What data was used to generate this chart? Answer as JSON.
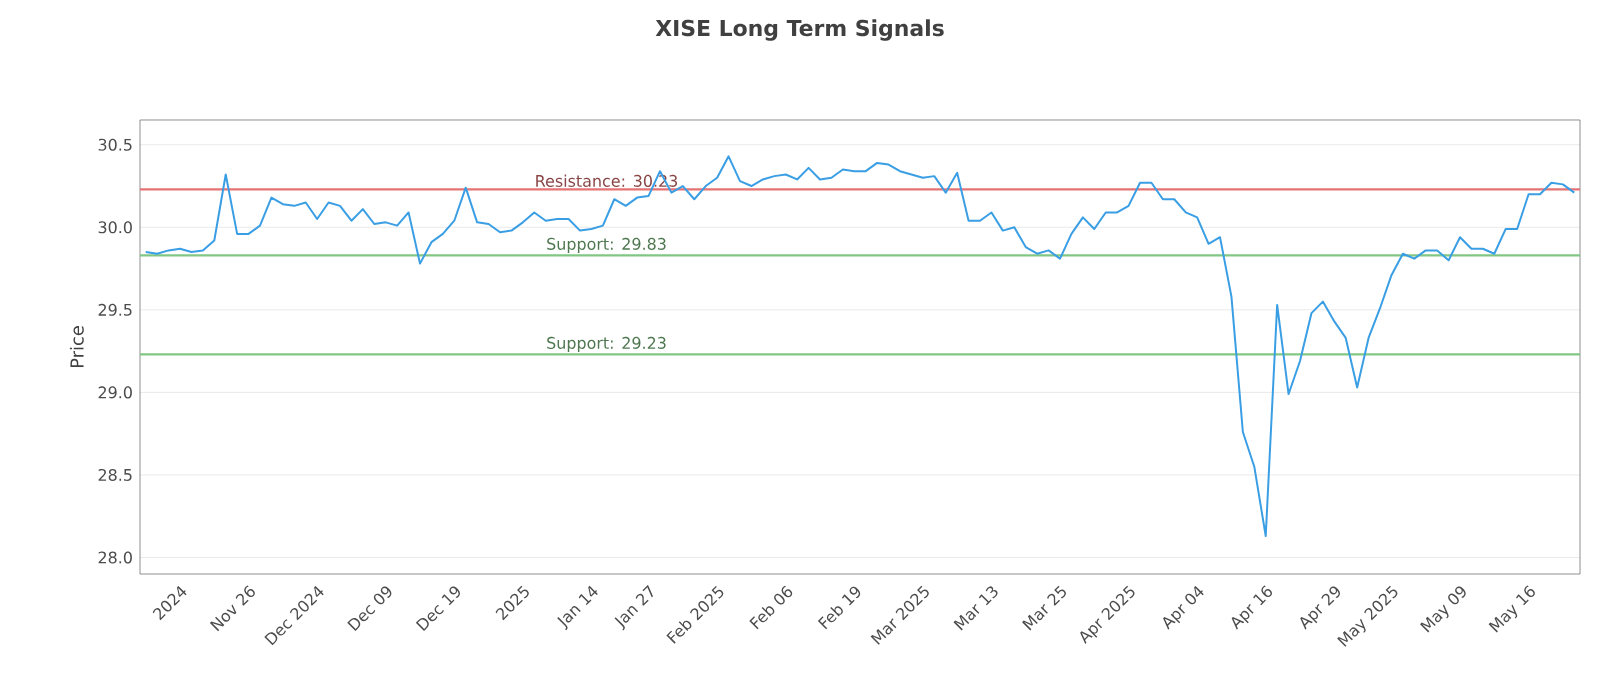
{
  "chart_data": {
    "type": "line",
    "title": "XISE Long Term Signals",
    "ylabel": "Price",
    "categories": [
      null,
      null,
      null,
      "2024",
      null,
      null,
      null,
      null,
      null,
      "Nov 26",
      null,
      null,
      null,
      null,
      null,
      "Dec 2024",
      null,
      null,
      null,
      null,
      null,
      "Dec 09",
      null,
      null,
      null,
      null,
      null,
      "Dec 19",
      null,
      null,
      null,
      null,
      null,
      "2025",
      null,
      null,
      null,
      null,
      null,
      "Jan 14",
      null,
      null,
      null,
      null,
      "Jan 27",
      null,
      null,
      null,
      null,
      null,
      "Feb 2025",
      null,
      null,
      null,
      null,
      null,
      "Feb 06",
      null,
      null,
      null,
      null,
      null,
      "Feb 19",
      null,
      null,
      null,
      null,
      null,
      "Mar 2025",
      null,
      null,
      null,
      null,
      null,
      "Mar 13",
      null,
      null,
      null,
      null,
      null,
      "Mar 25",
      null,
      null,
      null,
      null,
      null,
      "Apr 2025",
      null,
      null,
      null,
      null,
      null,
      "Apr 04",
      null,
      null,
      null,
      null,
      null,
      "Apr 16",
      null,
      null,
      null,
      null,
      null,
      "Apr 29",
      null,
      null,
      null,
      null,
      "May 2025",
      null,
      null,
      null,
      null,
      null,
      "May 09",
      null,
      null,
      null,
      null,
      null,
      "May 16",
      null,
      null,
      null,
      null
    ],
    "series": [
      {
        "color": "#3a9ee4",
        "values": [
          29.85,
          29.84,
          29.86,
          29.87,
          29.85,
          29.86,
          29.92,
          30.32,
          29.96,
          29.96,
          30.01,
          30.18,
          30.14,
          30.13,
          30.15,
          30.05,
          30.15,
          30.13,
          30.04,
          30.11,
          30.02,
          30.03,
          30.01,
          30.09,
          29.78,
          29.91,
          29.96,
          30.04,
          30.24,
          30.03,
          30.02,
          29.97,
          29.98,
          30.03,
          30.09,
          30.04,
          30.05,
          30.05,
          29.98,
          29.99,
          30.01,
          30.17,
          30.13,
          30.18,
          30.19,
          30.34,
          30.21,
          30.25,
          30.17,
          30.25,
          30.3,
          30.43,
          30.28,
          30.25,
          30.29,
          30.31,
          30.32,
          30.29,
          30.36,
          30.29,
          30.3,
          30.35,
          30.34,
          30.34,
          30.39,
          30.38,
          30.34,
          30.32,
          30.3,
          30.31,
          30.21,
          30.33,
          30.04,
          30.04,
          30.09,
          29.98,
          30.0,
          29.88,
          29.84,
          29.86,
          29.81,
          29.96,
          30.06,
          29.99,
          30.09,
          30.09,
          30.13,
          30.27,
          30.27,
          30.17,
          30.17,
          30.09,
          30.06,
          29.9,
          29.94,
          29.58,
          28.76,
          28.55,
          28.13,
          29.53,
          28.99,
          29.19,
          29.48,
          29.55,
          29.43,
          29.33,
          29.03,
          29.33,
          29.51,
          29.71,
          29.84,
          29.81,
          29.86,
          29.86,
          29.8,
          29.94,
          29.87,
          29.87,
          29.84,
          29.99,
          29.99,
          30.2,
          30.2,
          30.27,
          30.26,
          30.21
        ]
      }
    ],
    "ylim": [
      27.9,
      30.65
    ],
    "yticks": [
      {
        "value": 28.0,
        "label": "28.0"
      },
      {
        "value": 28.5,
        "label": "28.5"
      },
      {
        "value": 29.0,
        "label": "29.0"
      },
      {
        "value": 29.5,
        "label": "29.5"
      },
      {
        "value": 30.0,
        "label": "30.0"
      },
      {
        "value": 30.5,
        "label": "30.5"
      }
    ],
    "grid": "y",
    "ref_lines": [
      {
        "axis": "y",
        "value": 30.23,
        "label": "Resistance: 30.23",
        "color": "#e57373"
      },
      {
        "axis": "y",
        "value": 29.83,
        "label": "Support: 29.83",
        "color": "#81c784"
      },
      {
        "axis": "y",
        "value": 29.23,
        "label": "Support: 29.23",
        "color": "#81c784"
      }
    ]
  }
}
